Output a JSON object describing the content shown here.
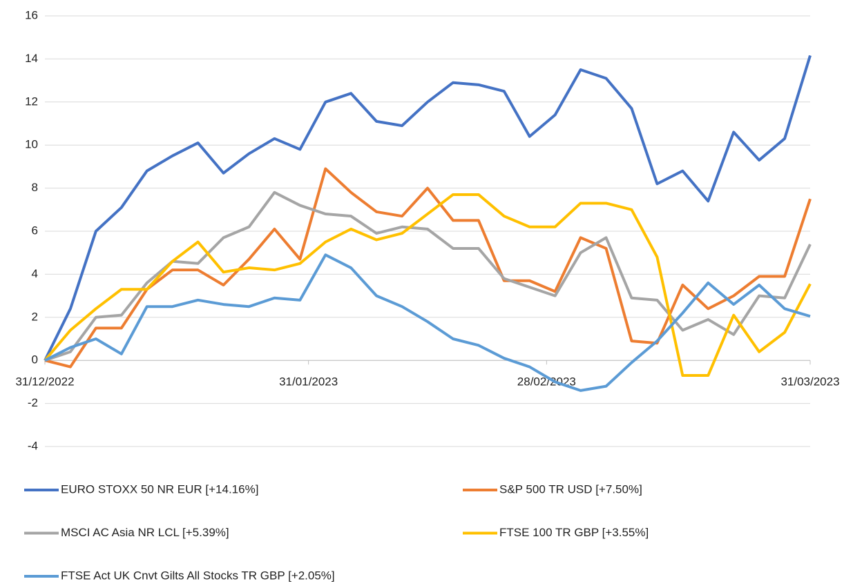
{
  "chart_data": {
    "type": "line",
    "x": [
      "31/12/2022",
      "03/01/2023",
      "06/01/2023",
      "09/01/2023",
      "12/01/2023",
      "15/01/2023",
      "18/01/2023",
      "21/01/2023",
      "24/01/2023",
      "27/01/2023",
      "30/01/2023",
      "02/02/2023",
      "05/02/2023",
      "08/02/2023",
      "11/02/2023",
      "14/02/2023",
      "17/02/2023",
      "20/02/2023",
      "23/02/2023",
      "26/02/2023",
      "01/03/2023",
      "04/03/2023",
      "07/03/2023",
      "10/03/2023",
      "13/03/2023",
      "16/03/2023",
      "19/03/2023",
      "22/03/2023",
      "25/03/2023",
      "28/03/2023",
      "31/03/2023"
    ],
    "xlim": [
      "31/12/2022",
      "31/03/2023"
    ],
    "xticks": [
      "31/12/2022",
      "31/01/2023",
      "28/02/2023",
      "31/03/2023"
    ],
    "ylim": [
      -4,
      16
    ],
    "yticks": [
      -4,
      -2,
      0,
      2,
      4,
      6,
      8,
      10,
      12,
      14,
      16
    ],
    "grid": true,
    "series": [
      {
        "name": "EURO STOXX 50 NR EUR [+14.16%]",
        "color": "#4472c4",
        "values": [
          0,
          2.4,
          6.0,
          7.1,
          8.8,
          9.5,
          10.1,
          8.7,
          9.6,
          10.3,
          9.8,
          12.0,
          12.4,
          11.1,
          10.9,
          12.0,
          12.9,
          12.8,
          12.5,
          10.4,
          11.4,
          13.5,
          13.1,
          11.7,
          8.2,
          8.8,
          7.4,
          10.6,
          9.3,
          10.3,
          14.16
        ]
      },
      {
        "name": "S&P 500 TR USD [+7.50%]",
        "color": "#ed7d31",
        "values": [
          0,
          -0.3,
          1.5,
          1.5,
          3.3,
          4.2,
          4.2,
          3.5,
          4.7,
          6.1,
          4.7,
          8.9,
          7.8,
          6.9,
          6.7,
          8.0,
          6.5,
          6.5,
          3.7,
          3.7,
          3.2,
          5.7,
          5.2,
          0.9,
          0.8,
          3.5,
          2.4,
          3.0,
          3.9,
          3.9,
          7.5
        ]
      },
      {
        "name": "MSCI AC Asia NR LCL [+5.39%]",
        "color": "#a5a5a5",
        "values": [
          0,
          0.4,
          2.0,
          2.1,
          3.6,
          4.6,
          4.5,
          5.7,
          6.2,
          7.8,
          7.2,
          6.8,
          6.7,
          5.9,
          6.2,
          6.1,
          5.2,
          5.2,
          3.8,
          3.4,
          3.0,
          5.0,
          5.7,
          2.9,
          2.8,
          1.4,
          1.9,
          1.2,
          3.0,
          2.9,
          5.39
        ]
      },
      {
        "name": "FTSE 100 TR GBP [+3.55%]",
        "color": "#ffc000",
        "values": [
          0,
          1.4,
          2.4,
          3.3,
          3.3,
          4.6,
          5.5,
          4.1,
          4.3,
          4.2,
          4.5,
          5.5,
          6.1,
          5.6,
          5.9,
          6.8,
          7.7,
          7.7,
          6.7,
          6.2,
          6.2,
          7.3,
          7.3,
          7.0,
          4.8,
          -0.7,
          -0.7,
          2.1,
          0.4,
          1.3,
          3.55
        ]
      },
      {
        "name": "FTSE Act UK Cnvt Gilts All Stocks TR GBP [+2.05%]",
        "color": "#5b9bd5",
        "values": [
          0,
          0.6,
          1.0,
          0.3,
          2.5,
          2.5,
          2.8,
          2.6,
          2.5,
          2.9,
          2.8,
          4.9,
          4.3,
          3.0,
          2.5,
          1.8,
          1.0,
          0.7,
          0.1,
          -0.3,
          -1.0,
          -1.4,
          -1.2,
          -0.1,
          0.9,
          2.2,
          3.6,
          2.6,
          3.5,
          2.4,
          2.05
        ]
      }
    ]
  }
}
